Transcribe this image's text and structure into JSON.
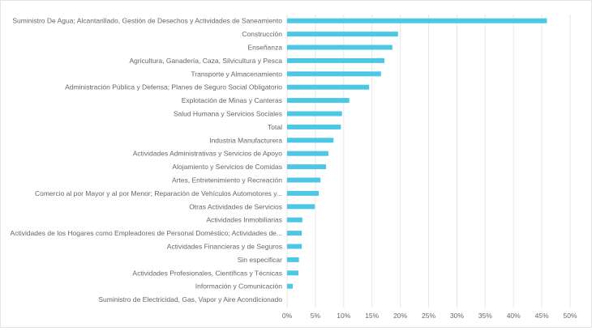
{
  "chart_data": {
    "type": "bar",
    "orientation": "horizontal",
    "categories": [
      "Suministro De Agua; Alcantarillado, Gestión de Desechos y Actividades de Saneamiento",
      "Construcción",
      "Enseñanza",
      "Agricultura, Ganadería, Caza, Silvicultura y Pesca",
      "Transporte y Almacenamiento",
      "Administración Pública y Defensa; Planes de Seguro Social Obligatorio",
      "Explotación de Minas y Canteras",
      "Salud Humana y Servicios Sociales",
      "Total",
      "Industria Manufacturera",
      "Actividades Administrativas y Servicios de Apoyo",
      "Alojamiento y Servicios de Comidas",
      "Artes, Entretenimiento y Recreación",
      "Comercio al por Mayor y al por Menor; Reparación de Vehículos Automotores y...",
      "Otras Actividades de Servicios",
      "Actividades Inmobiliarias",
      "Actividades de los Hogares como Empleadores de Personal Doméstico; Actividades de...",
      "Actividades Financieras y de Seguros",
      "Sin especificar",
      "Actividades Profesionales, Científicas y Técnicas",
      "Información y Comunicación",
      "Suministro de Electricidad, Gas, Vapor y Aire Acondicionado"
    ],
    "values": [
      45.9,
      19.6,
      18.6,
      17.2,
      16.6,
      14.5,
      11.0,
      9.7,
      9.5,
      8.2,
      7.3,
      6.9,
      5.9,
      5.6,
      4.9,
      2.7,
      2.6,
      2.6,
      2.1,
      2.0,
      1.0,
      0
    ],
    "xlim": [
      0,
      50
    ],
    "x_ticks": [
      "0%",
      "5%",
      "10%",
      "15%",
      "20%",
      "25%",
      "30%",
      "35%",
      "40%",
      "45%",
      "50%"
    ],
    "grid": true,
    "bar_color": "#4cc8e6",
    "grid_color": "#e6e6e6"
  }
}
